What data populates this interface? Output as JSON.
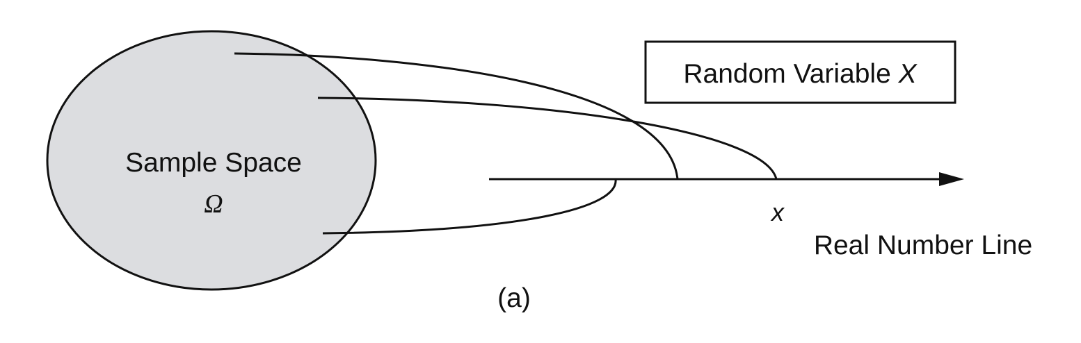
{
  "diagram": {
    "sample_space": {
      "label": "Sample Space",
      "symbol": "Ω",
      "fill_color": "#dcdde0"
    },
    "random_variable_box": {
      "label": "Random Variable",
      "symbol": "X"
    },
    "number_line": {
      "label": "Real Number Line",
      "point_label": "x"
    },
    "caption": "(a)",
    "line_color": "#111111"
  }
}
